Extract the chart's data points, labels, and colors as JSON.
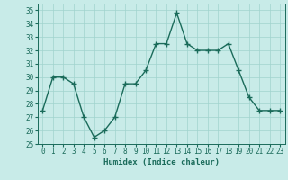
{
  "x": [
    0,
    1,
    2,
    3,
    4,
    5,
    6,
    7,
    8,
    9,
    10,
    11,
    12,
    13,
    14,
    15,
    16,
    17,
    18,
    19,
    20,
    21,
    22,
    23
  ],
  "y": [
    27.5,
    30.0,
    30.0,
    29.5,
    27.0,
    25.5,
    26.0,
    27.0,
    29.5,
    29.5,
    30.5,
    32.5,
    32.5,
    34.8,
    32.5,
    32.0,
    32.0,
    32.0,
    32.5,
    30.5,
    28.5,
    27.5,
    27.5,
    27.5
  ],
  "xlabel": "Humidex (Indice chaleur)",
  "xlim": [
    -0.5,
    23.5
  ],
  "ylim": [
    25,
    35.5
  ],
  "yticks": [
    25,
    26,
    27,
    28,
    29,
    30,
    31,
    32,
    33,
    34,
    35
  ],
  "xticks": [
    0,
    1,
    2,
    3,
    4,
    5,
    6,
    7,
    8,
    9,
    10,
    11,
    12,
    13,
    14,
    15,
    16,
    17,
    18,
    19,
    20,
    21,
    22,
    23
  ],
  "line_color": "#1a6b5a",
  "bg_color": "#c8ebe8",
  "grid_color": "#a0d4ce",
  "font_color": "#1a6b5a",
  "font_family": "monospace",
  "tick_fontsize": 5.5,
  "xlabel_fontsize": 6.5
}
